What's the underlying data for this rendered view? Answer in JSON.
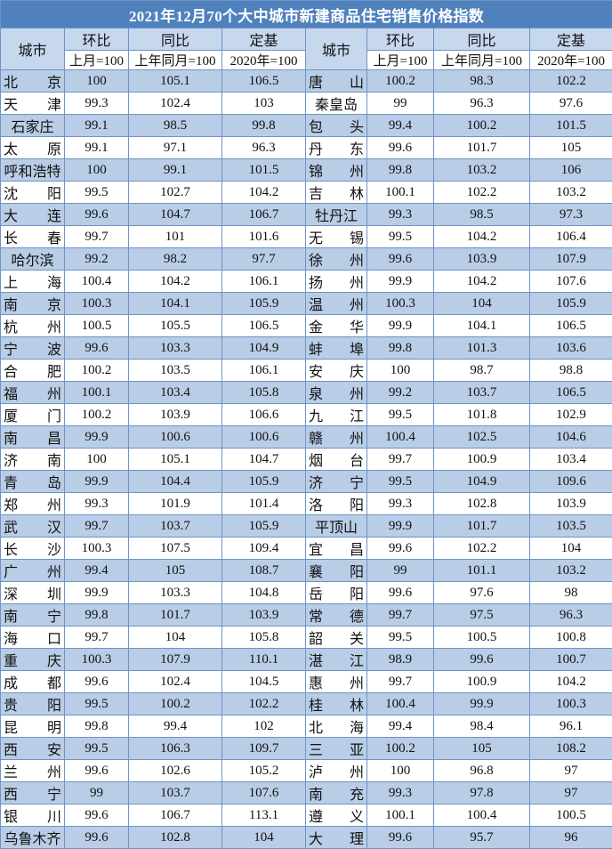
{
  "title": "2021年12月70个大中城市新建商品住宅销售价格指数",
  "headers": {
    "city": "城市",
    "mom": "环比",
    "mom_base": "上月=100",
    "yoy": "同比",
    "yoy_base": "上年同月=100",
    "fixed": "定基",
    "fixed_base": "2020年=100"
  },
  "colors": {
    "title_bg": "#4f81bd",
    "header_bg": "#c6d7ee",
    "alt_row_bg": "#b9cde6",
    "border": "#6f93c3"
  },
  "rows": [
    {
      "left": [
        "北京",
        "100",
        "105.1",
        "106.5"
      ],
      "right": [
        "唐山",
        "100.2",
        "98.3",
        "102.2"
      ]
    },
    {
      "left": [
        "天津",
        "99.3",
        "102.4",
        "103"
      ],
      "right": [
        "秦皇岛",
        "99",
        "96.3",
        "97.6"
      ]
    },
    {
      "left": [
        "石家庄",
        "99.1",
        "98.5",
        "99.8"
      ],
      "right": [
        "包头",
        "99.4",
        "100.2",
        "101.5"
      ]
    },
    {
      "left": [
        "太原",
        "99.1",
        "97.1",
        "96.3"
      ],
      "right": [
        "丹东",
        "99.6",
        "101.7",
        "105"
      ]
    },
    {
      "left": [
        "呼和浩特",
        "100",
        "99.1",
        "101.5"
      ],
      "right": [
        "锦州",
        "99.8",
        "103.2",
        "106"
      ]
    },
    {
      "left": [
        "沈阳",
        "99.5",
        "102.7",
        "104.2"
      ],
      "right": [
        "吉林",
        "100.1",
        "102.2",
        "103.2"
      ]
    },
    {
      "left": [
        "大连",
        "99.6",
        "104.7",
        "106.7"
      ],
      "right": [
        "牡丹江",
        "99.3",
        "98.5",
        "97.3"
      ]
    },
    {
      "left": [
        "长春",
        "99.7",
        "101",
        "101.6"
      ],
      "right": [
        "无锡",
        "99.5",
        "104.2",
        "106.4"
      ]
    },
    {
      "left": [
        "哈尔滨",
        "99.2",
        "98.2",
        "97.7"
      ],
      "right": [
        "徐州",
        "99.6",
        "103.9",
        "107.9"
      ]
    },
    {
      "left": [
        "上海",
        "100.4",
        "104.2",
        "106.1"
      ],
      "right": [
        "扬州",
        "99.9",
        "104.2",
        "107.6"
      ]
    },
    {
      "left": [
        "南京",
        "100.3",
        "104.1",
        "105.9"
      ],
      "right": [
        "温州",
        "100.3",
        "104",
        "105.9"
      ]
    },
    {
      "left": [
        "杭州",
        "100.5",
        "105.5",
        "106.5"
      ],
      "right": [
        "金华",
        "99.9",
        "104.1",
        "106.5"
      ]
    },
    {
      "left": [
        "宁波",
        "99.6",
        "103.3",
        "104.9"
      ],
      "right": [
        "蚌埠",
        "99.8",
        "101.3",
        "103.6"
      ]
    },
    {
      "left": [
        "合肥",
        "100.2",
        "103.5",
        "106.1"
      ],
      "right": [
        "安庆",
        "100",
        "98.7",
        "98.8"
      ]
    },
    {
      "left": [
        "福州",
        "100.1",
        "103.4",
        "105.8"
      ],
      "right": [
        "泉州",
        "99.2",
        "103.7",
        "106.5"
      ]
    },
    {
      "left": [
        "厦门",
        "100.2",
        "103.9",
        "106.6"
      ],
      "right": [
        "九江",
        "99.5",
        "101.8",
        "102.9"
      ]
    },
    {
      "left": [
        "南昌",
        "99.9",
        "100.6",
        "100.6"
      ],
      "right": [
        "赣州",
        "100.4",
        "102.5",
        "104.6"
      ]
    },
    {
      "left": [
        "济南",
        "100",
        "105.1",
        "104.7"
      ],
      "right": [
        "烟台",
        "99.7",
        "100.9",
        "103.4"
      ]
    },
    {
      "left": [
        "青岛",
        "99.9",
        "104.4",
        "105.9"
      ],
      "right": [
        "济宁",
        "99.5",
        "104.9",
        "109.6"
      ]
    },
    {
      "left": [
        "郑州",
        "99.3",
        "101.9",
        "101.4"
      ],
      "right": [
        "洛阳",
        "99.3",
        "102.8",
        "103.9"
      ]
    },
    {
      "left": [
        "武汉",
        "99.7",
        "103.7",
        "105.9"
      ],
      "right": [
        "平顶山",
        "99.9",
        "101.7",
        "103.5"
      ]
    },
    {
      "left": [
        "长沙",
        "100.3",
        "107.5",
        "109.4"
      ],
      "right": [
        "宜昌",
        "99.6",
        "102.2",
        "104"
      ]
    },
    {
      "left": [
        "广州",
        "99.4",
        "105",
        "108.7"
      ],
      "right": [
        "襄阳",
        "99",
        "101.1",
        "103.2"
      ]
    },
    {
      "left": [
        "深圳",
        "99.9",
        "103.3",
        "104.8"
      ],
      "right": [
        "岳阳",
        "99.6",
        "97.6",
        "98"
      ]
    },
    {
      "left": [
        "南宁",
        "99.8",
        "101.7",
        "103.9"
      ],
      "right": [
        "常德",
        "99.7",
        "97.5",
        "96.3"
      ]
    },
    {
      "left": [
        "海口",
        "99.7",
        "104",
        "105.8"
      ],
      "right": [
        "韶关",
        "99.5",
        "100.5",
        "100.8"
      ]
    },
    {
      "left": [
        "重庆",
        "100.3",
        "107.9",
        "110.1"
      ],
      "right": [
        "湛江",
        "98.9",
        "99.6",
        "100.7"
      ]
    },
    {
      "left": [
        "成都",
        "99.6",
        "102.4",
        "104.5"
      ],
      "right": [
        "惠州",
        "99.7",
        "100.9",
        "104.2"
      ]
    },
    {
      "left": [
        "贵阳",
        "99.5",
        "100.2",
        "102.2"
      ],
      "right": [
        "桂林",
        "100.4",
        "99.9",
        "100.3"
      ]
    },
    {
      "left": [
        "昆明",
        "99.8",
        "99.4",
        "102"
      ],
      "right": [
        "北海",
        "99.4",
        "98.4",
        "96.1"
      ]
    },
    {
      "left": [
        "西安",
        "99.5",
        "106.3",
        "109.7"
      ],
      "right": [
        "三亚",
        "100.2",
        "105",
        "108.2"
      ]
    },
    {
      "left": [
        "兰州",
        "99.6",
        "102.6",
        "105.2"
      ],
      "right": [
        "泸州",
        "100",
        "96.8",
        "97"
      ]
    },
    {
      "left": [
        "西宁",
        "99",
        "103.7",
        "107.6"
      ],
      "right": [
        "南充",
        "99.3",
        "97.8",
        "97"
      ]
    },
    {
      "left": [
        "银川",
        "99.6",
        "106.7",
        "113.1"
      ],
      "right": [
        "遵义",
        "100.1",
        "100.4",
        "100.5"
      ]
    },
    {
      "left": [
        "乌鲁木齐",
        "99.6",
        "102.8",
        "104"
      ],
      "right": [
        "大理",
        "99.6",
        "95.7",
        "96"
      ]
    }
  ]
}
